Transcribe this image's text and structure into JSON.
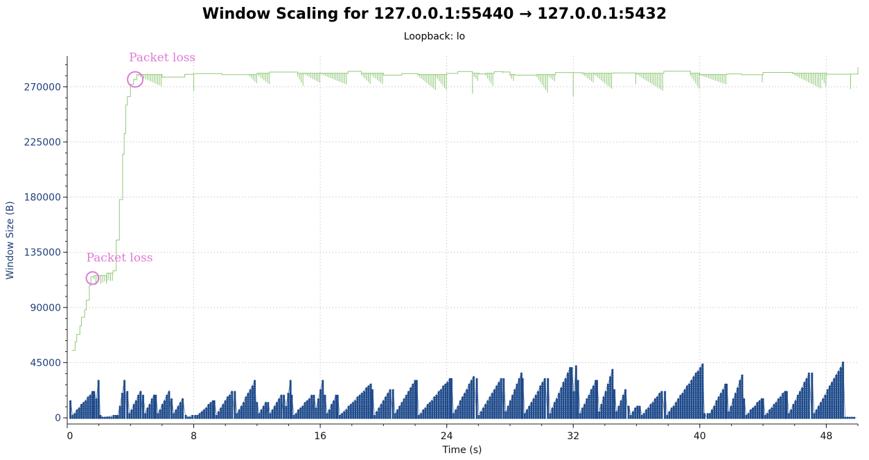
{
  "chart_data": {
    "type": "line",
    "title": "Window Scaling for 127.0.0.1:55440 → 127.0.0.1:5432",
    "subtitle": "Loopback: lo",
    "xlabel": "Time (s)",
    "ylabel": "Window Size (B)",
    "xlim": [
      0,
      50
    ],
    "ylim": [
      -5000,
      295000
    ],
    "xticks": [
      0,
      8,
      16,
      24,
      32,
      40,
      48
    ],
    "yticks": [
      0,
      45000,
      90000,
      135000,
      180000,
      225000,
      270000
    ],
    "xtick_labels": [
      "0",
      "8",
      "16",
      "24",
      "32",
      "40",
      "48"
    ],
    "ytick_labels": [
      "0",
      "45000",
      "90000",
      "135000",
      "180000",
      "225000",
      "270000"
    ],
    "grid": true,
    "colors": {
      "receive_window": "#8fc977",
      "bytes_in_flight": "#1f4a8a",
      "annotation": "#e07ad6"
    },
    "series": [
      {
        "kind": "step-line",
        "description_color": "receive_window",
        "x": [
          0.3,
          0.5,
          0.6,
          0.8,
          0.9,
          1.1,
          1.2,
          1.4,
          1.5,
          1.7,
          2.0,
          2.5,
          2.9,
          3.1,
          3.3,
          3.5,
          3.6,
          3.7,
          3.8,
          4.0,
          4.2,
          4.4,
          6,
          8,
          12,
          16,
          20,
          24,
          28,
          32,
          36,
          40,
          44,
          48,
          50
        ],
        "y": [
          55000,
          62000,
          68000,
          75000,
          82000,
          88000,
          96000,
          108000,
          115000,
          116000,
          116000,
          118000,
          120000,
          145000,
          178000,
          215000,
          232000,
          255000,
          262000,
          272000,
          276000,
          280000,
          279000,
          280000,
          281000,
          281000,
          280000,
          281000,
          280000,
          281000,
          281000,
          280000,
          281000,
          280000,
          286000
        ]
      },
      {
        "kind": "sawtooth-points",
        "description_color": "bytes_in_flight",
        "x": [
          0.2,
          1.7,
          2.1,
          3.2,
          3.8,
          4.8,
          5.6,
          6.6,
          7.5,
          8.1,
          9.3,
          10.6,
          12.0,
          12.7,
          13.7,
          14.2,
          15.6,
          16.3,
          17.1,
          19.3,
          20.6,
          22.1,
          24.3,
          25.9,
          27.6,
          28.8,
          30.4,
          31.9,
          32.3,
          33.5,
          34.6,
          35.5,
          36.2,
          37.8,
          40.3,
          40.5,
          41.7,
          42.8,
          44.0,
          45.5,
          47.1,
          49.2,
          49.9
        ],
        "y": [
          14000,
          21000,
          31000,
          2000,
          31000,
          22000,
          19000,
          22000,
          16000,
          2000,
          14000,
          22000,
          30000,
          13000,
          19000,
          30000,
          18000,
          31000,
          18000,
          28000,
          23000,
          30000,
          32000,
          34000,
          32000,
          36000,
          32000,
          41000,
          42000,
          30000,
          39000,
          23000,
          10000,
          22000,
          44000,
          3000,
          27000,
          35000,
          16000,
          22000,
          36000,
          45000,
          0
        ]
      }
    ],
    "annotations": [
      {
        "text": "Packet  loss",
        "x": 1.6,
        "y": 114000
      },
      {
        "text": "Packet  loss",
        "x": 4.3,
        "y": 276000
      }
    ]
  }
}
